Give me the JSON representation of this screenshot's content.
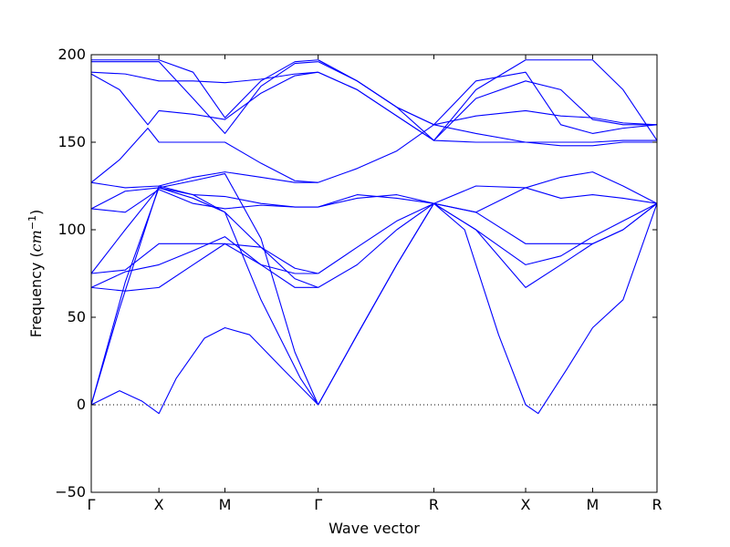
{
  "chart_data": {
    "type": "line",
    "xlabel": "Wave vector",
    "ylabel_prefix": "Frequency (",
    "ylabel_unit": "cm",
    "ylabel_exp": "−1",
    "ylabel_suffix": ")",
    "ylim": [
      -50,
      200
    ],
    "yticks": [
      -50,
      0,
      50,
      100,
      150,
      200
    ],
    "ytick_labels": [
      "−50",
      "0",
      "50",
      "100",
      "150",
      "200"
    ],
    "xlim": [
      0,
      1
    ],
    "xticks": [
      0,
      0.1196,
      0.2363,
      0.4011,
      0.6056,
      0.7678,
      0.8862,
      1.0
    ],
    "xtick_labels": [
      "Γ",
      "X",
      "M",
      "Γ",
      "R",
      "X",
      "M",
      "R"
    ],
    "grid": false,
    "zero_reference_line": true,
    "line_color": "#0000ff",
    "series": [
      {
        "x": [
          0,
          0.05,
          0.09,
          0.1196,
          0.15,
          0.2,
          0.2363,
          0.28,
          0.34,
          0.4011
        ],
        "y": [
          0,
          8,
          2,
          -5,
          15,
          38,
          44,
          40,
          20,
          0
        ]
      },
      {
        "x": [
          0,
          0.05,
          0.1196,
          0.18,
          0.2363,
          0.3,
          0.37,
          0.4011
        ],
        "y": [
          0,
          55,
          125,
          120,
          110,
          60,
          15,
          0
        ]
      },
      {
        "x": [
          0,
          0.06,
          0.1196,
          0.18,
          0.2363,
          0.3,
          0.36,
          0.4011
        ],
        "y": [
          0,
          70,
          124,
          128,
          132,
          95,
          30,
          0
        ]
      },
      {
        "x": [
          0,
          0.06,
          0.1196,
          0.18,
          0.2363,
          0.3,
          0.36,
          0.4011
        ],
        "y": [
          67,
          65,
          67,
          80,
          92,
          90,
          72,
          67
        ]
      },
      {
        "x": [
          0,
          0.06,
          0.1196,
          0.18,
          0.2363,
          0.3,
          0.36,
          0.4011
        ],
        "y": [
          67,
          76,
          80,
          88,
          96,
          80,
          67,
          67
        ]
      },
      {
        "x": [
          0,
          0.06,
          0.1196,
          0.18,
          0.2363,
          0.3,
          0.36,
          0.4011
        ],
        "y": [
          75,
          77,
          92,
          92,
          92,
          80,
          75,
          75
        ]
      },
      {
        "x": [
          0,
          0.06,
          0.1196,
          0.18,
          0.2363,
          0.3,
          0.36,
          0.4011
        ],
        "y": [
          75,
          100,
          124,
          118,
          110,
          90,
          78,
          75
        ]
      },
      {
        "x": [
          0,
          0.06,
          0.1196,
          0.18,
          0.2363,
          0.3,
          0.36,
          0.4011
        ],
        "y": [
          112,
          110,
          123,
          115,
          112,
          114,
          113,
          113
        ]
      },
      {
        "x": [
          0,
          0.06,
          0.1196,
          0.18,
          0.2363,
          0.3,
          0.36,
          0.4011
        ],
        "y": [
          112,
          122,
          124,
          120,
          119,
          115,
          113,
          113
        ]
      },
      {
        "x": [
          0,
          0.06,
          0.1196,
          0.18,
          0.2363,
          0.3,
          0.36,
          0.4011
        ],
        "y": [
          127,
          124,
          125,
          130,
          133,
          130,
          127,
          127
        ]
      },
      {
        "x": [
          0,
          0.05,
          0.1,
          0.1196,
          0.18,
          0.2363,
          0.3,
          0.36,
          0.4011
        ],
        "y": [
          127,
          140,
          158,
          150,
          150,
          150,
          138,
          128,
          127
        ]
      },
      {
        "x": [
          0,
          0.05,
          0.1,
          0.1196,
          0.18,
          0.2363,
          0.3,
          0.36,
          0.4011
        ],
        "y": [
          189,
          180,
          160,
          168,
          166,
          163,
          178,
          188,
          190
        ]
      },
      {
        "x": [
          0,
          0.06,
          0.1196,
          0.18,
          0.2363,
          0.3,
          0.36,
          0.4011
        ],
        "y": [
          190,
          189,
          185,
          185,
          184,
          186,
          189,
          190
        ]
      },
      {
        "x": [
          0,
          0.06,
          0.1196,
          0.18,
          0.2363,
          0.3,
          0.36,
          0.4011
        ],
        "y": [
          196,
          196,
          196,
          175,
          155,
          182,
          195,
          196
        ]
      },
      {
        "x": [
          0,
          0.06,
          0.1196,
          0.18,
          0.2363,
          0.3,
          0.36,
          0.4011
        ],
        "y": [
          197,
          197,
          197,
          190,
          164,
          185,
          196,
          197
        ]
      },
      {
        "x": [
          0.4011,
          0.47,
          0.54,
          0.6056,
          0.66,
          0.72,
          0.7678,
          0.79,
          0.84,
          0.8862,
          0.94,
          1.0
        ],
        "y": [
          0,
          40,
          80,
          115,
          100,
          40,
          0,
          -5,
          20,
          44,
          60,
          115
        ]
      },
      {
        "x": [
          0.4011,
          0.47,
          0.54,
          0.6056,
          0.68,
          0.7678,
          0.83,
          0.8862,
          0.94,
          1.0
        ],
        "y": [
          0,
          40,
          80,
          115,
          100,
          67,
          80,
          92,
          100,
          115
        ]
      },
      {
        "x": [
          0.4011,
          0.47,
          0.54,
          0.6056,
          0.68,
          0.7678,
          0.83,
          0.8862,
          0.94,
          1.0
        ],
        "y": [
          67,
          80,
          100,
          115,
          110,
          92,
          92,
          92,
          100,
          115
        ]
      },
      {
        "x": [
          0.4011,
          0.47,
          0.54,
          0.6056,
          0.68,
          0.7678,
          0.83,
          0.8862,
          0.94,
          1.0
        ],
        "y": [
          75,
          90,
          105,
          115,
          100,
          80,
          85,
          96,
          105,
          115
        ]
      },
      {
        "x": [
          0.4011,
          0.47,
          0.54,
          0.6056,
          0.68,
          0.7678,
          0.83,
          0.8862,
          0.94,
          1.0
        ],
        "y": [
          113,
          120,
          118,
          115,
          125,
          124,
          118,
          120,
          118,
          115
        ]
      },
      {
        "x": [
          0.4011,
          0.47,
          0.54,
          0.6056,
          0.68,
          0.7678,
          0.83,
          0.8862,
          0.94,
          1.0
        ],
        "y": [
          113,
          118,
          120,
          115,
          110,
          124,
          130,
          133,
          125,
          115
        ]
      },
      {
        "x": [
          0.4011,
          0.47,
          0.54,
          0.6056,
          0.68,
          0.7678,
          0.83,
          0.8862,
          0.94,
          1.0
        ],
        "y": [
          127,
          135,
          145,
          160,
          155,
          150,
          150,
          150,
          151,
          151
        ]
      },
      {
        "x": [
          0.4011,
          0.47,
          0.54,
          0.6056,
          0.68,
          0.7678,
          0.83,
          0.8862,
          0.94,
          1.0
        ],
        "y": [
          190,
          180,
          165,
          151,
          150,
          150,
          148,
          148,
          150,
          150
        ]
      },
      {
        "x": [
          0.4011,
          0.47,
          0.54,
          0.6056,
          0.68,
          0.7678,
          0.83,
          0.8862,
          0.94,
          1.0
        ],
        "y": [
          190,
          180,
          165,
          151,
          175,
          185,
          180,
          163,
          160,
          160
        ]
      },
      {
        "x": [
          0.4011,
          0.47,
          0.54,
          0.6056,
          0.68,
          0.7678,
          0.83,
          0.8862,
          0.94,
          1.0
        ],
        "y": [
          196,
          185,
          170,
          160,
          185,
          190,
          160,
          155,
          158,
          160
        ]
      },
      {
        "x": [
          0.4011,
          0.47,
          0.54,
          0.6056,
          0.68,
          0.7678,
          0.83,
          0.8862,
          0.94,
          1.0
        ],
        "y": [
          197,
          185,
          170,
          160,
          165,
          168,
          165,
          164,
          161,
          160
        ]
      },
      {
        "x": [
          0.4011,
          0.47,
          0.54,
          0.6056,
          0.68,
          0.7678,
          0.83,
          0.8862,
          0.94,
          1.0
        ],
        "y": [
          197,
          185,
          170,
          151,
          180,
          197,
          197,
          197,
          180,
          151
        ]
      }
    ]
  }
}
